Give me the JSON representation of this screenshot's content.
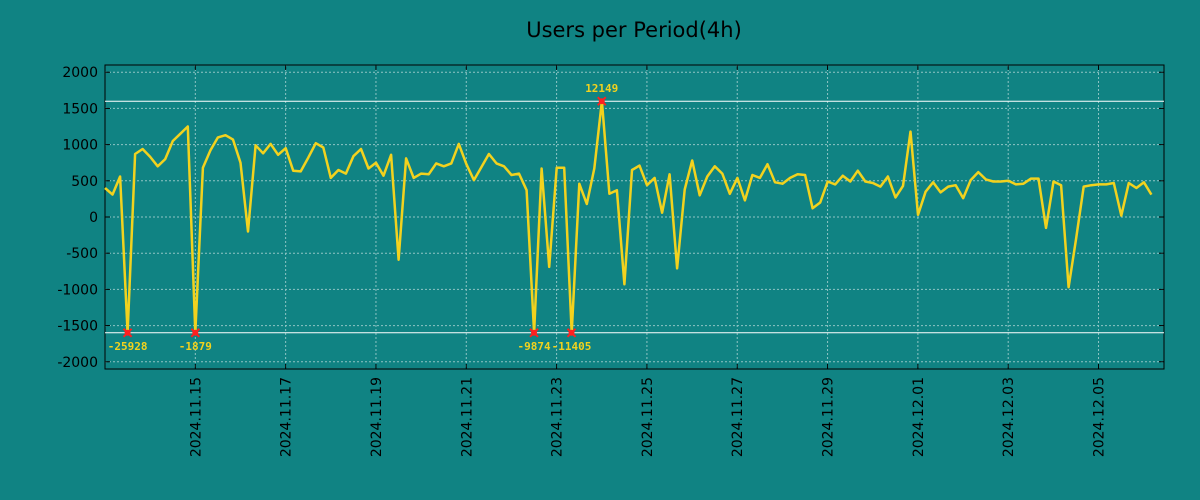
{
  "chart_data": {
    "type": "line",
    "title": "Users per Period(4h)",
    "xlabel": "",
    "ylabel": "",
    "ylim": [
      -2100,
      2100
    ],
    "y_ticks": [
      2000,
      1500,
      1000,
      500,
      0,
      -500,
      -1000,
      -1500,
      -2000
    ],
    "x_range_days": [
      0,
      23.45
    ],
    "x_ticks": [
      {
        "day": 2,
        "label": "2024.11.15"
      },
      {
        "day": 4,
        "label": "2024.11.17"
      },
      {
        "day": 6,
        "label": "2024.11.19"
      },
      {
        "day": 8,
        "label": "2024.11.21"
      },
      {
        "day": 10,
        "label": "2024.11.23"
      },
      {
        "day": 12,
        "label": "2024.11.25"
      },
      {
        "day": 14,
        "label": "2024.11.27"
      },
      {
        "day": 16,
        "label": "2024.11.29"
      },
      {
        "day": 18,
        "label": "2024.12.01"
      },
      {
        "day": 20,
        "label": "2024.12.03"
      },
      {
        "day": 22,
        "label": "2024.12.05"
      }
    ],
    "grid": true,
    "reference_lines": [
      1600,
      -1600
    ],
    "series": [
      {
        "name": "Users",
        "color": "#f2d21e",
        "x_start_day": 0,
        "x_step_day": 0.1667,
        "values": [
          400,
          310,
          560,
          -1600,
          870,
          940,
          830,
          700,
          800,
          1050,
          1150,
          1250,
          -1600,
          680,
          920,
          1100,
          1130,
          1070,
          750,
          -200,
          990,
          880,
          1010,
          860,
          950,
          640,
          630,
          820,
          1020,
          960,
          540,
          650,
          600,
          840,
          940,
          670,
          750,
          570,
          860,
          -590,
          810,
          540,
          600,
          590,
          740,
          700,
          740,
          1010,
          730,
          510,
          690,
          870,
          740,
          700,
          580,
          600,
          370,
          -1600,
          670,
          -690,
          680,
          680,
          -1600,
          460,
          180,
          670,
          1600,
          320,
          370,
          -930,
          650,
          710,
          440,
          540,
          60,
          590,
          -710,
          380,
          780,
          300,
          560,
          700,
          600,
          320,
          540,
          230,
          580,
          540,
          730,
          480,
          460,
          540,
          590,
          580,
          120,
          200,
          490,
          450,
          570,
          490,
          640,
          490,
          470,
          420,
          560,
          270,
          430,
          1180,
          30,
          350,
          480,
          340,
          420,
          440,
          260,
          510,
          620,
          520,
          490,
          490,
          500,
          450,
          460,
          530,
          530,
          -150,
          490,
          440,
          -970,
          -300,
          420,
          440,
          450,
          450,
          470,
          20,
          470,
          400,
          480,
          310
        ]
      }
    ],
    "annotations": [
      {
        "label": "12149",
        "day": 11.0,
        "value": 1600,
        "position": "above"
      },
      {
        "label": "-25928",
        "day": 0.5,
        "value": -1600,
        "position": "below"
      },
      {
        "label": "-1879",
        "day": 2.0,
        "value": -1600,
        "position": "below"
      },
      {
        "label": "-9874",
        "day": 9.5,
        "value": -1600,
        "position": "below"
      },
      {
        "label": "-11405",
        "day": 10.33,
        "value": -1600,
        "position": "below"
      }
    ]
  }
}
